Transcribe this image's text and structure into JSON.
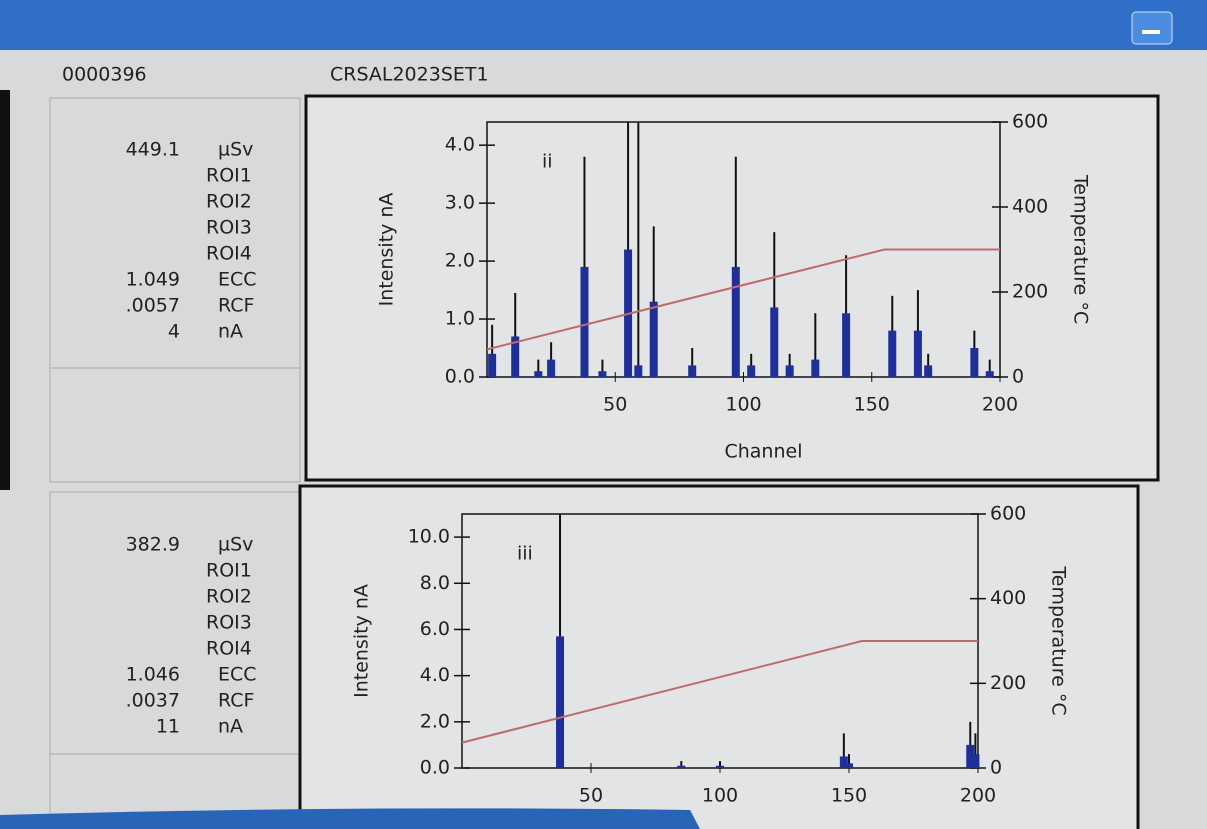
{
  "header": {
    "id": "0000396",
    "name": "CRSAL2023SET1"
  },
  "panels": [
    {
      "readings": [
        [
          "449.1",
          "µSv"
        ],
        [
          "ROI1"
        ],
        [
          "ROI2"
        ],
        [
          "ROI3"
        ],
        [
          "ROI4"
        ],
        [
          "1.049",
          "ECC"
        ],
        [
          ".0057",
          "RCF"
        ],
        [
          "4",
          "nA"
        ]
      ],
      "chart_data": {
        "type": "spike",
        "annotation": "ii",
        "x_label": "Channel",
        "y_label": "Intensity nA",
        "y2_label": "Temperature °C",
        "x": [
          2,
          11,
          20,
          25,
          38,
          45,
          55,
          59,
          65,
          80,
          97,
          103,
          112,
          118,
          128,
          140,
          158,
          168,
          172,
          190,
          196
        ],
        "series": [
          {
            "color": "#111111",
            "values": [
              0.9,
              1.45,
              0.3,
              0.6,
              3.8,
              0.3,
              4.4,
              4.4,
              2.6,
              0.5,
              3.8,
              0.4,
              2.5,
              0.4,
              1.1,
              2.1,
              1.4,
              1.5,
              0.4,
              0.8,
              0.3
            ]
          },
          {
            "color": "#1f2f9a",
            "values": [
              0.4,
              0.7,
              0.1,
              0.3,
              1.9,
              0.1,
              2.2,
              0.2,
              1.3,
              0.2,
              1.9,
              0.2,
              1.2,
              0.2,
              0.3,
              1.1,
              0.8,
              0.8,
              0.2,
              0.5,
              0.1
            ]
          }
        ],
        "temperature": {
          "color": "#c06a6a",
          "x": [
            0,
            155,
            200
          ],
          "values": [
            65,
            300,
            300
          ]
        },
        "xlim": [
          0,
          200
        ],
        "xticks": [
          50,
          100,
          150,
          200
        ],
        "ylim": [
          0,
          4.4
        ],
        "yticks": [
          {
            "value": 0,
            "label": "0.0"
          },
          {
            "value": 1,
            "label": "1.0"
          },
          {
            "value": 2,
            "label": "2.0"
          },
          {
            "value": 3,
            "label": "3.0"
          },
          {
            "value": 4,
            "label": "4.0"
          }
        ],
        "y2lim": [
          0,
          600
        ],
        "y2ticks": [
          0,
          200,
          400,
          600
        ]
      }
    },
    {
      "readings": [
        [
          "382.9",
          "µSv"
        ],
        [
          "ROI1"
        ],
        [
          "ROI2"
        ],
        [
          "ROI3"
        ],
        [
          "ROI4"
        ],
        [
          "1.046",
          "ECC"
        ],
        [
          ".0037",
          "RCF"
        ],
        [
          "11",
          "nA"
        ]
      ],
      "chart_data": {
        "type": "spike",
        "annotation": "iii",
        "y_label": "Intensity nA",
        "y2_label": "Temperature °C",
        "x": [
          38,
          85,
          100,
          148,
          150,
          197,
          199
        ],
        "series": [
          {
            "color": "#111111",
            "values": [
              11,
              0.3,
              0.3,
              1.5,
              0.6,
              2.0,
              1.5
            ]
          },
          {
            "color": "#1f2f9a",
            "values": [
              5.7,
              0.1,
              0.1,
              0.5,
              0.2,
              1.0,
              0.6
            ]
          }
        ],
        "temperature": {
          "color": "#c06a6a",
          "x": [
            0,
            155,
            200
          ],
          "values": [
            60,
            300,
            300
          ]
        },
        "xlim": [
          0,
          200
        ],
        "xticks": [
          50,
          100,
          150,
          200
        ],
        "ylim": [
          0,
          11
        ],
        "yticks": [
          {
            "value": 0,
            "label": "0.0"
          },
          {
            "value": 2,
            "label": "2.0"
          },
          {
            "value": 4,
            "label": "4.0"
          },
          {
            "value": 6,
            "label": "6.0"
          },
          {
            "value": 8,
            "label": "8.0"
          },
          {
            "value": 10,
            "label": "10.0"
          }
        ],
        "y2lim": [
          0,
          600
        ],
        "y2ticks": [
          0,
          200,
          400,
          600
        ]
      }
    }
  ]
}
